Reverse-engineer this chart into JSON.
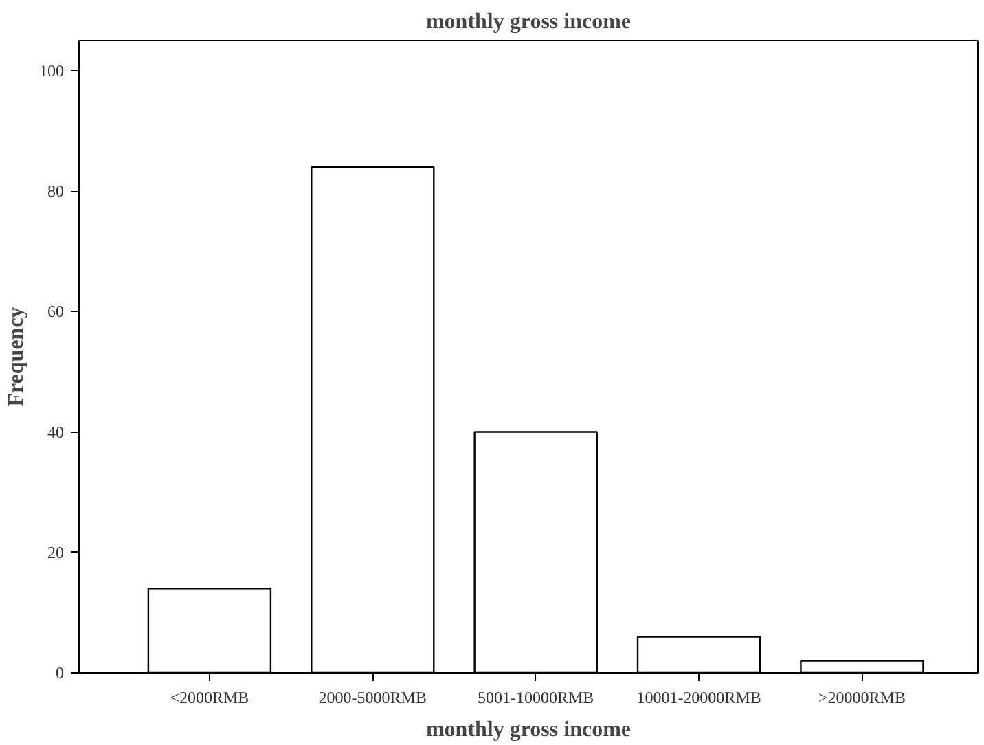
{
  "chart_data": {
    "type": "bar",
    "title": "monthly gross income",
    "xlabel": "monthly gross income",
    "ylabel": "Frequency",
    "categories": [
      "<2000RMB",
      "2000-5000RMB",
      "5001-10000RMB",
      "10001-20000RMB",
      ">20000RMB"
    ],
    "values": [
      14,
      84,
      40,
      6,
      2
    ],
    "color": "#ffffff",
    "ylim": [
      0,
      105
    ],
    "yticks": [
      0,
      20,
      40,
      60,
      80,
      100
    ],
    "grid": false
  }
}
